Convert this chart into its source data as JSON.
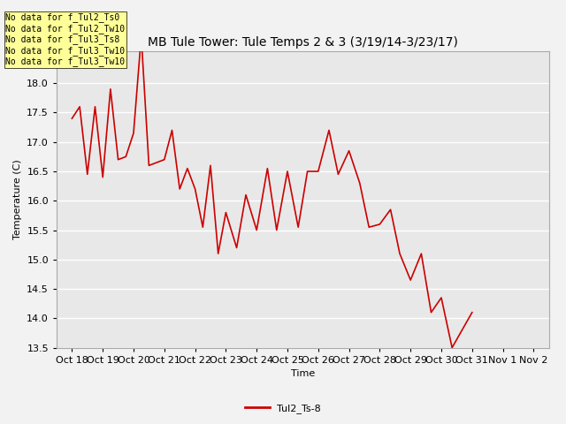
{
  "title": "MB Tule Tower: Tule Temps 2 & 3 (3/19/14-3/23/17)",
  "xlabel": "Time",
  "ylabel": "Temperature (C)",
  "legend_label": "Tul2_Ts-8",
  "line_color": "#cc0000",
  "plot_bg_color": "#e8e8e8",
  "fig_bg_color": "#f2f2f2",
  "ylim": [
    13.5,
    18.55
  ],
  "no_data_lines": [
    "No data for f_Tul2_Ts0",
    "No data for f_Tul2_Tw10",
    "No data for f_Tul3_Ts8",
    "No data for f_Tul3_Tw10",
    "No data for f_Tul3_Tw10"
  ],
  "xtick_labels": [
    "Oct 18",
    "Oct 19",
    "Oct 20",
    "Oct 21",
    "Oct 22",
    "Oct 23",
    "Oct 24",
    "Oct 25",
    "Oct 26",
    "Oct 27",
    "Oct 28",
    "Oct 29",
    "Oct 30",
    "Oct 31",
    "Nov 1",
    "Nov 2"
  ],
  "ytick_values": [
    13.5,
    14.0,
    14.5,
    15.0,
    15.5,
    16.0,
    16.5,
    17.0,
    17.5,
    18.0
  ],
  "x_data": [
    0.0,
    0.25,
    0.5,
    0.75,
    1.0,
    1.25,
    1.5,
    1.75,
    2.0,
    2.25,
    2.5,
    2.75,
    3.0,
    3.25,
    3.5,
    3.75,
    4.0,
    4.25,
    4.5,
    4.75,
    5.0,
    5.35,
    5.65,
    6.0,
    6.35,
    6.65,
    7.0,
    7.35,
    7.65,
    8.0,
    8.35,
    8.65,
    9.0,
    9.35,
    9.65,
    10.0,
    10.35,
    10.65,
    11.0,
    11.35,
    11.67,
    12.0,
    12.35,
    13.0
  ],
  "y_data": [
    17.4,
    17.6,
    16.45,
    17.6,
    16.4,
    17.9,
    16.7,
    16.75,
    17.15,
    18.8,
    16.6,
    16.65,
    16.7,
    17.2,
    16.2,
    16.55,
    16.2,
    15.55,
    16.6,
    15.1,
    15.8,
    15.2,
    16.1,
    15.5,
    16.55,
    15.5,
    16.5,
    15.55,
    16.5,
    16.5,
    17.2,
    16.45,
    16.85,
    16.3,
    15.55,
    15.6,
    15.85,
    15.1,
    14.65,
    15.1,
    14.1,
    14.35,
    13.5,
    14.1
  ],
  "grid_color": "#ffffff",
  "title_fontsize": 10,
  "axis_label_fontsize": 8,
  "tick_fontsize": 8,
  "nodata_fontsize": 7,
  "legend_fontsize": 8
}
